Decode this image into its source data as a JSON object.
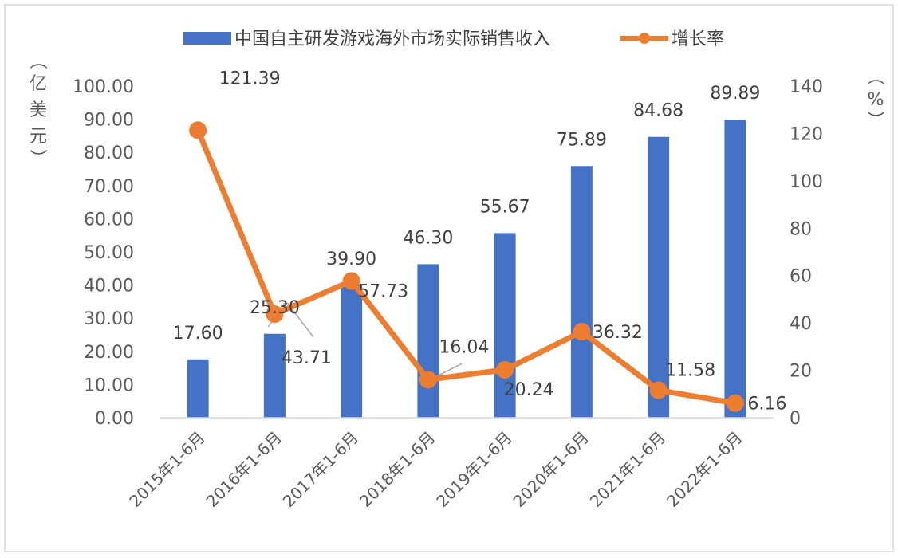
{
  "chart_data": {
    "type": "bar",
    "title": "",
    "categories": [
      "2015年1-6月",
      "2016年1-6月",
      "2017年1-6月",
      "2018年1-6月",
      "2019年1-6月",
      "2020年1-6月",
      "2021年1-6月",
      "2022年1-6月"
    ],
    "series": [
      {
        "name": "中国自主研发游戏海外市场实际销售收入",
        "type": "bar",
        "axis": "left",
        "color": "#4472C4",
        "values": [
          17.6,
          25.3,
          39.9,
          46.3,
          55.67,
          75.89,
          84.68,
          89.89
        ],
        "labels": [
          "17.60",
          "25.30",
          "39.90",
          "46.30",
          "55.67",
          "75.89",
          "84.68",
          "89.89"
        ]
      },
      {
        "name": "增长率",
        "type": "line",
        "axis": "right",
        "color": "#ED7D31",
        "values": [
          121.39,
          43.71,
          57.73,
          16.04,
          20.24,
          36.32,
          11.58,
          6.16
        ],
        "labels": [
          "121.39",
          "43.71",
          "57.73",
          "16.04",
          "20.24",
          "36.32",
          "11.58",
          "6.16"
        ]
      }
    ],
    "y_left": {
      "label_chars": [
        "（",
        "亿",
        "美",
        "元",
        "）"
      ],
      "ylim": [
        0,
        100
      ],
      "ticks": [
        "100.00",
        "90.00",
        "80.00",
        "70.00",
        "60.00",
        "50.00",
        "40.00",
        "30.00",
        "20.00",
        "10.00",
        "0.00"
      ]
    },
    "y_right": {
      "label_chars": [
        "（",
        "%",
        "）"
      ],
      "ylim": [
        0,
        140
      ],
      "ticks": [
        "140",
        "120",
        "100",
        "80",
        "60",
        "40",
        "20",
        "0"
      ]
    },
    "legend_position": "top-center",
    "grid": false
  }
}
